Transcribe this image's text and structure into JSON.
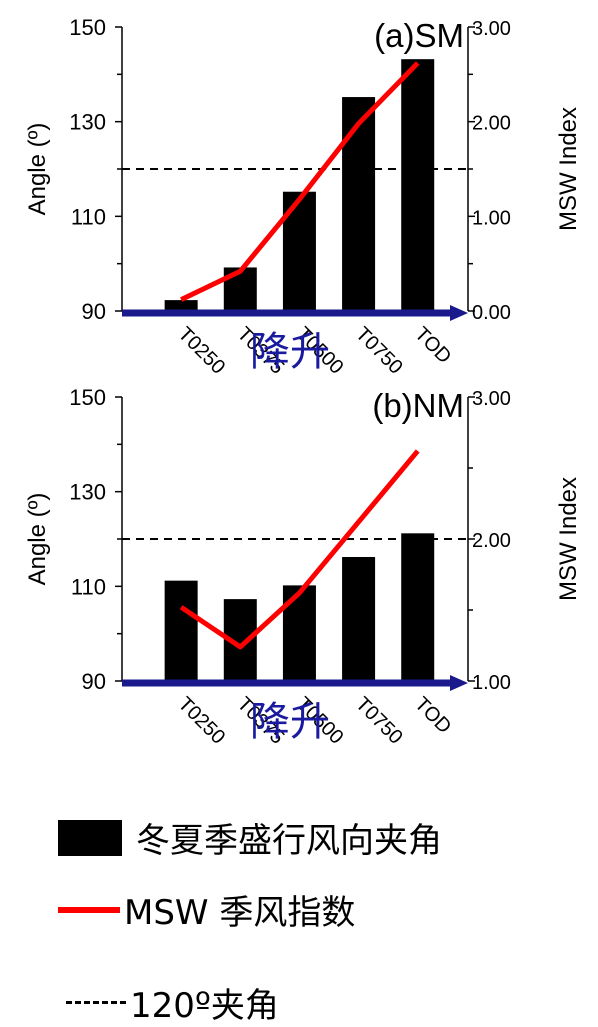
{
  "chart_data": [
    {
      "type": "bar",
      "panel_label": "(a)SM",
      "categories": [
        "T0250",
        "T0375",
        "T0500",
        "T0750",
        "TOD"
      ],
      "series": [
        {
          "values": [
            92.3,
            99.2,
            115.2,
            135.2,
            143.2
          ]
        },
        {
          "values": [
            0.12,
            0.42,
            1.18,
            1.98,
            2.62
          ]
        }
      ],
      "reference_line": 120,
      "ylabel": "Angle (º)",
      "y2label": "MSW Index",
      "ylim": [
        90,
        150
      ],
      "y2lim": [
        0,
        3
      ],
      "yticks": [
        "90",
        "110",
        "130",
        "150"
      ],
      "y2ticks": [
        "0.00",
        "1.00",
        "2.00",
        "3.00"
      ],
      "arrow_text": "降升"
    },
    {
      "type": "bar",
      "panel_label": "(b)NM",
      "categories": [
        "T0250",
        "T0375",
        "T0500",
        "T0750",
        "TOD"
      ],
      "series": [
        {
          "values": [
            111.2,
            107.3,
            110.2,
            116.2,
            121.2
          ]
        },
        {
          "values": [
            1.52,
            1.24,
            1.62,
            2.12,
            2.62
          ]
        }
      ],
      "reference_line": 120,
      "ylabel": "Angle (º)",
      "y2label": "MSW Index",
      "ylim": [
        90,
        150
      ],
      "y2lim": [
        1,
        3
      ],
      "yticks": [
        "90",
        "110",
        "130",
        "150"
      ],
      "y2ticks": [
        "1.00",
        "2.00",
        "3.00"
      ],
      "arrow_text": "降升"
    }
  ],
  "legend": {
    "bar_label": "冬夏季盛行风向夹角",
    "line_label": "MSW 季风指数",
    "dash_label": "120º夹角"
  },
  "colors": {
    "bar": "#000000",
    "line": "#ff0000",
    "arrow": "#1a1a8c",
    "arrow_text": "#1a1aa0"
  }
}
